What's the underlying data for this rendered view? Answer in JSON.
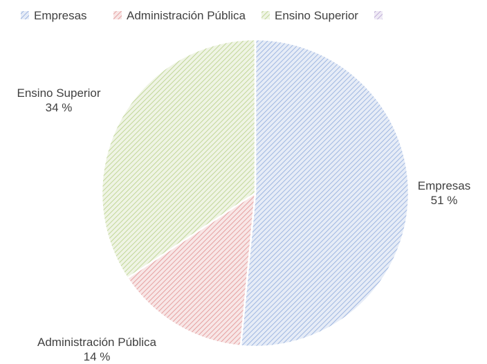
{
  "chart_data": {
    "type": "pie",
    "legend_position": "top",
    "legend": [
      "Empresas",
      "Administración Pública",
      "Ensino Superior",
      ""
    ],
    "slices": [
      {
        "name": "Empresas",
        "value": 51,
        "label": "Empresas",
        "pct_label": "51 %",
        "color": "#8eaadb"
      },
      {
        "name": "Administración Pública",
        "value": 14,
        "label": "Administración Pública",
        "pct_label": "14 %",
        "color": "#e08f8f"
      },
      {
        "name": "Ensino Superior",
        "value": 34,
        "label": "Ensino Superior",
        "pct_label": "34 %",
        "color": "#b6cf86"
      },
      {
        "name": "",
        "value": 0,
        "label": "",
        "pct_label": "",
        "color": "#b4a0d0"
      }
    ],
    "hatch": "diagonal"
  }
}
